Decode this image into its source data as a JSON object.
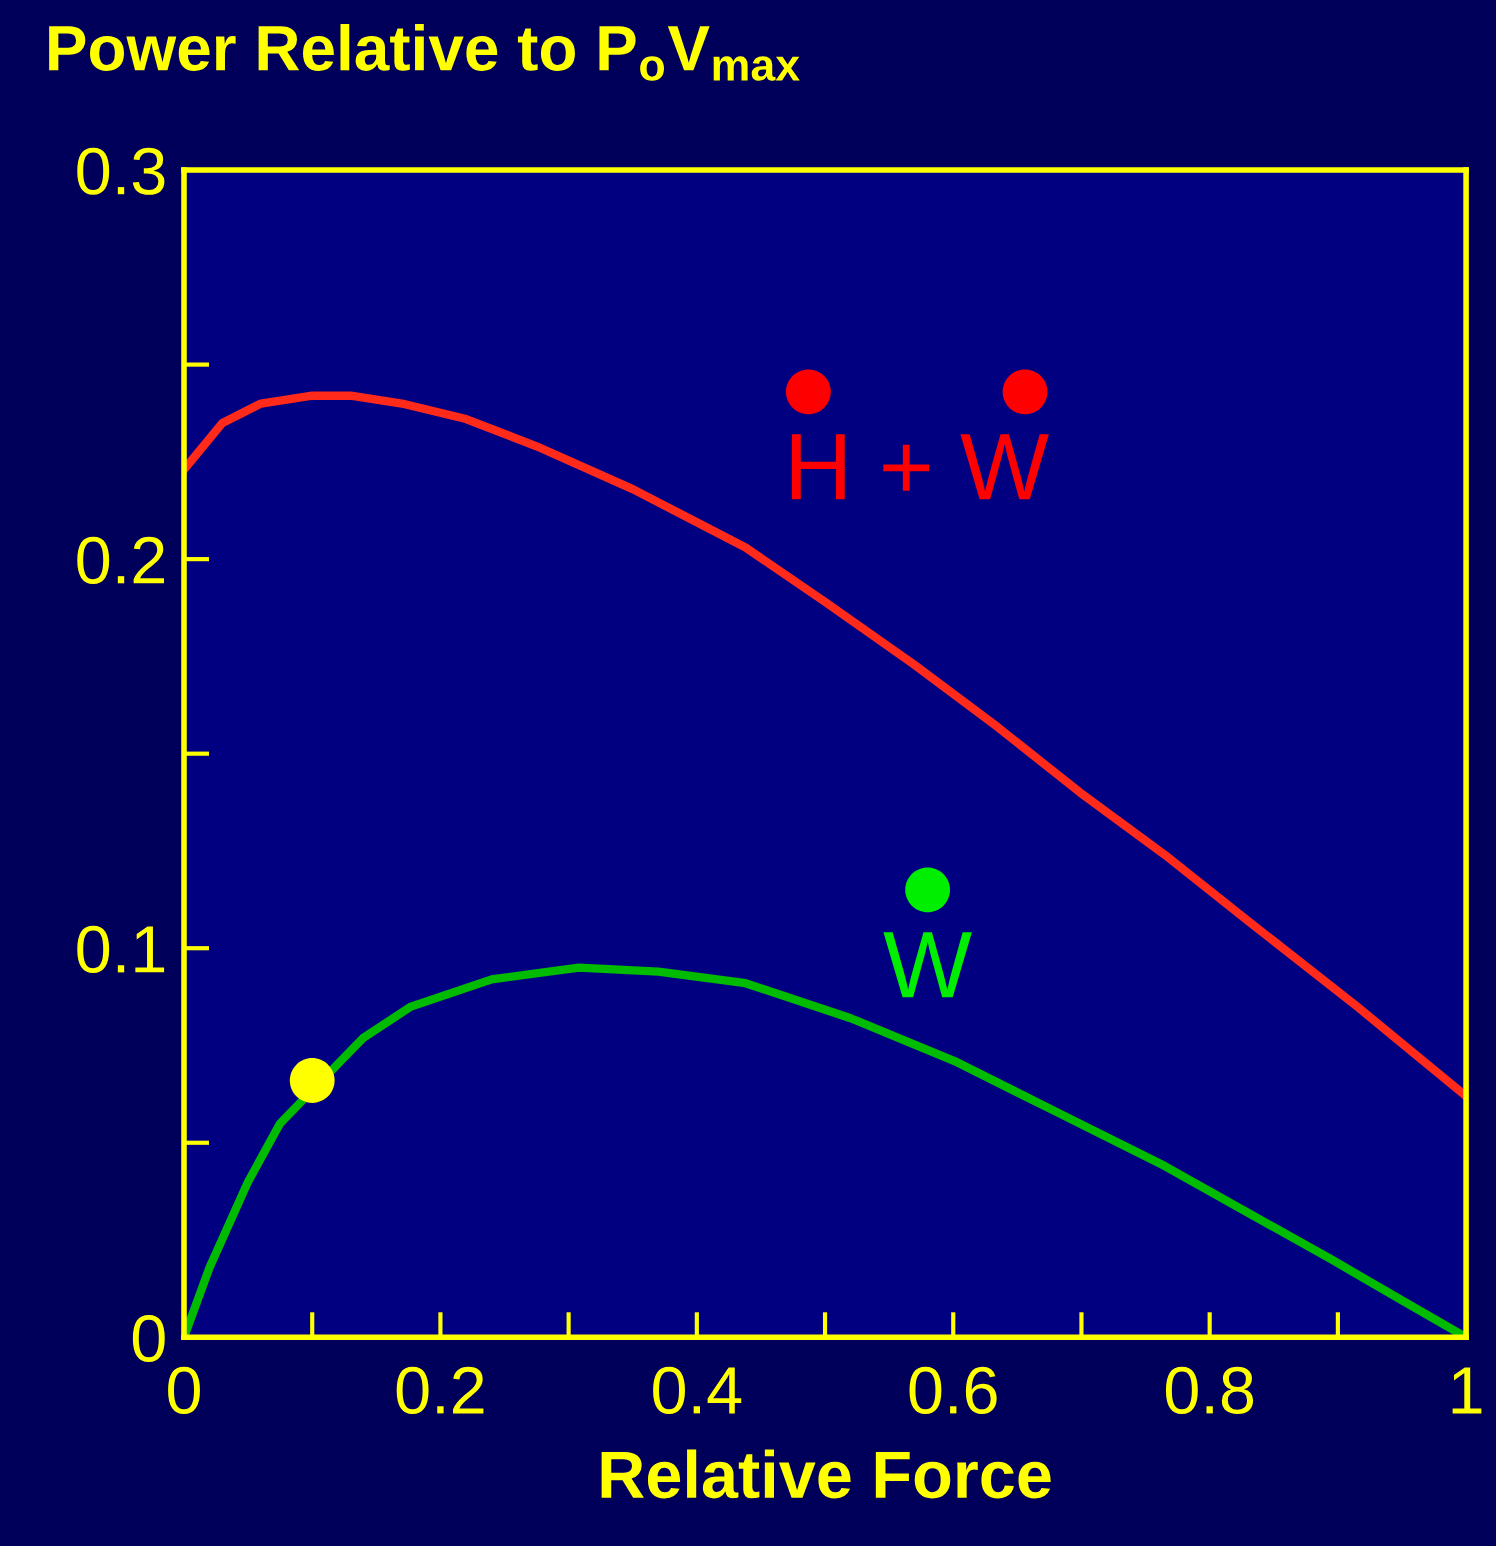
{
  "chart_data": {
    "type": "line",
    "title": "Power Relative to P$_{o}$V$_{max}$",
    "xlabel": "Relative Force",
    "xlim": [
      0,
      1
    ],
    "ylim": [
      0,
      0.3
    ],
    "xticks": [
      0,
      {
        "value": 0.1,
        "label": null
      },
      0.2,
      {
        "value": 0.3,
        "label": null
      },
      0.4,
      {
        "value": 0.5,
        "label": null
      },
      0.6,
      {
        "value": 0.7,
        "label": null
      },
      0.8,
      {
        "value": 0.9,
        "label": null
      },
      1
    ],
    "yticks": [
      0,
      {
        "value": 0.05,
        "label": null
      },
      0.1,
      {
        "value": 0.15,
        "label": null
      },
      0.2,
      {
        "value": 0.25,
        "label": null
      },
      0.3
    ],
    "grid": false,
    "legend": false,
    "marker": "none",
    "line_style": "solid",
    "series": [
      {
        "color": "#ff2a1a",
        "x": [
          0,
          0.03,
          0.06,
          0.1,
          0.13,
          0.17,
          0.22,
          0.275,
          0.35,
          0.438,
          0.5,
          0.569,
          0.634,
          0.699,
          0.765,
          0.83,
          0.915,
          1.0
        ],
        "values": [
          0.223,
          0.235,
          0.24,
          0.242,
          0.242,
          0.24,
          0.236,
          0.229,
          0.218,
          0.203,
          0.189,
          0.173,
          0.157,
          0.14,
          0.124,
          0.107,
          0.085,
          0.062
        ]
      },
      {
        "color": "#00bb00",
        "x": [
          0,
          0.02,
          0.05,
          0.075,
          0.14,
          0.177,
          0.24,
          0.308,
          0.37,
          0.438,
          0.52,
          0.601,
          0.68,
          0.765,
          0.83,
          0.895,
          0.95,
          1.0
        ],
        "values": [
          0,
          0.018,
          0.04,
          0.055,
          0.077,
          0.085,
          0.092,
          0.095,
          0.094,
          0.091,
          0.082,
          0.071,
          0.058,
          0.044,
          0.032,
          0.02,
          0.0095,
          0
        ]
      },
      {
        "type": "scatter",
        "marker": "circle",
        "color": "#ffff00",
        "x": [
          0.1
        ],
        "values": [
          0.066
        ]
      },
      {
        "type": "scatter",
        "marker": "circle",
        "name": "W",
        "color": "#00ee00",
        "x": [
          0.58
        ],
        "values": [
          0.115
        ]
      },
      {
        "type": "scatter",
        "marker": "circle",
        "name": "H + W",
        "color": "#ff0000",
        "x": [
          0.487,
          0.656
        ],
        "values": [
          0.243,
          0.243
        ]
      }
    ]
  }
}
